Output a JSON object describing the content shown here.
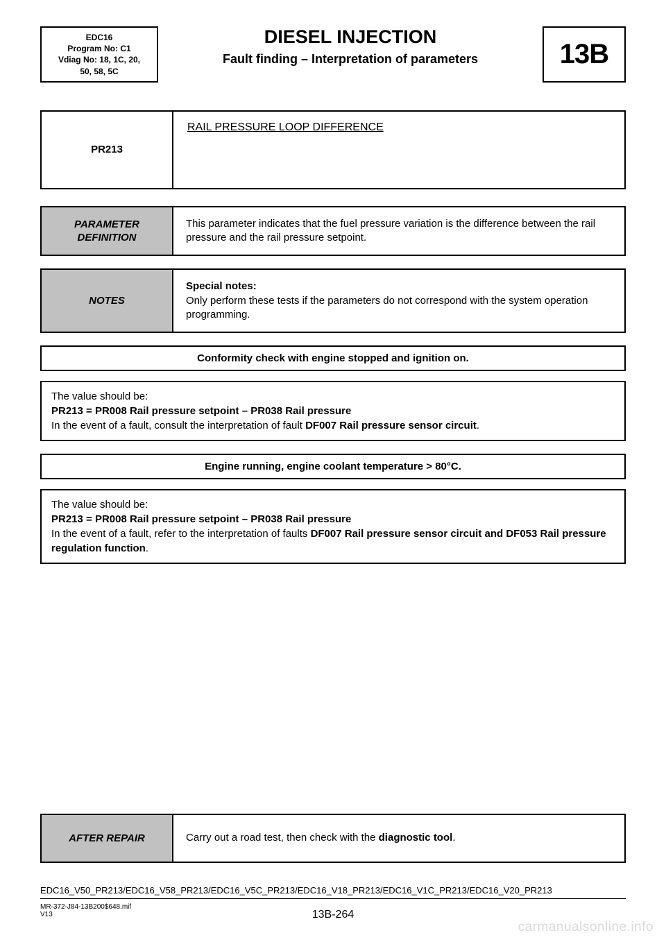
{
  "header": {
    "left_lines": [
      "EDC16",
      "Program No: C1",
      "Vdiag No: 18, 1C, 20,",
      "50, 58, 5C"
    ],
    "title1": "DIESEL INJECTION",
    "title2": "Fault finding – Interpretation of parameters",
    "section_code": "13B"
  },
  "fault_box": {
    "code": "PR213",
    "title": "RAIL PRESSURE LOOP DIFFERENCE"
  },
  "param_def": {
    "label": "PARAMETER DEFINITION",
    "text": "This parameter indicates that the fuel pressure variation is the difference between the rail pressure and the rail pressure setpoint."
  },
  "notes": {
    "label": "NOTES",
    "heading": "Special notes:",
    "text": "Only perform these tests if the parameters do not correspond with the system operation programming."
  },
  "banner1": "Conformity check with engine stopped and ignition on.",
  "block1": {
    "line1": "The value should be:",
    "line2_bold": "PR213 = PR008 Rail pressure setpoint – PR038 Rail pressure",
    "line3_pre": "In the event of a fault, consult the interpretation of fault ",
    "line3_bold": "DF007 Rail pressure sensor circuit",
    "line3_post": "."
  },
  "banner2": "Engine running, engine coolant temperature > 80°C.",
  "block2": {
    "line1": "The value should be:",
    "line2_bold": "PR213 = PR008 Rail pressure setpoint – PR038 Rail pressure",
    "line3_pre": "In the event of a fault, refer to the interpretation of faults ",
    "line3_bold": "DF007 Rail pressure sensor circuit and DF053 Rail pressure regulation function",
    "line3_post": "."
  },
  "after_repair": {
    "label": "AFTER REPAIR",
    "text_pre": "Carry out a road test, then check with the ",
    "text_bold": "diagnostic tool",
    "text_post": "."
  },
  "footer": {
    "codes": "EDC16_V50_PR213/EDC16_V58_PR213/EDC16_V5C_PR213/EDC16_V18_PR213/EDC16_V1C_PR213/EDC16_V20_PR213",
    "mif": "MR-372-J84-13B200$648.mif",
    "v": "V13",
    "page": "13B-264"
  },
  "watermark": "carmanualsonline.info",
  "colors": {
    "grey_cell": "#c1c1c1",
    "watermark": "#d9d9d9",
    "border": "#000000",
    "text": "#000000",
    "background": "#ffffff"
  }
}
